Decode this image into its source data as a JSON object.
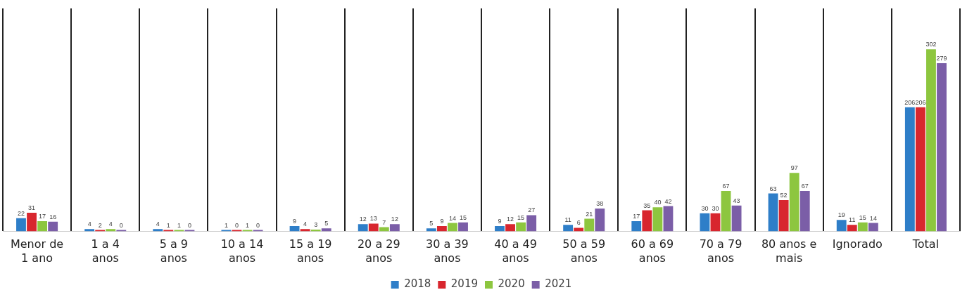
{
  "chart_data": {
    "type": "bar",
    "categories": [
      "Menor de 1 ano",
      "1 a 4 anos",
      "5 a 9 anos",
      "10 a 14 anos",
      "15 a 19 anos",
      "20 a 29 anos",
      "30 a 39 anos",
      "40 a 49 anos",
      "50 a 59 anos",
      "60 a 69 anos",
      "70 a 79 anos",
      "80 anos e mais",
      "Ignorado",
      "Total"
    ],
    "series": [
      {
        "name": "2018",
        "color": "#2e7ec8",
        "values": [
          22,
          4,
          4,
          1,
          9,
          12,
          5,
          9,
          11,
          17,
          30,
          63,
          19,
          206
        ]
      },
      {
        "name": "2019",
        "color": "#d8262e",
        "values": [
          31,
          2,
          1,
          0,
          4,
          13,
          9,
          12,
          6,
          35,
          30,
          52,
          11,
          206
        ]
      },
      {
        "name": "2020",
        "color": "#8dc63f",
        "values": [
          17,
          4,
          1,
          1,
          3,
          7,
          14,
          15,
          21,
          40,
          67,
          97,
          15,
          302
        ]
      },
      {
        "name": "2021",
        "color": "#7b5ea7",
        "values": [
          16,
          0,
          0,
          0,
          5,
          12,
          15,
          27,
          38,
          42,
          43,
          67,
          14,
          279
        ]
      }
    ],
    "ylim": [
      0,
      370
    ],
    "tick_labels": "x",
    "grid": "x",
    "legend": "bottom",
    "data_labels": true
  }
}
